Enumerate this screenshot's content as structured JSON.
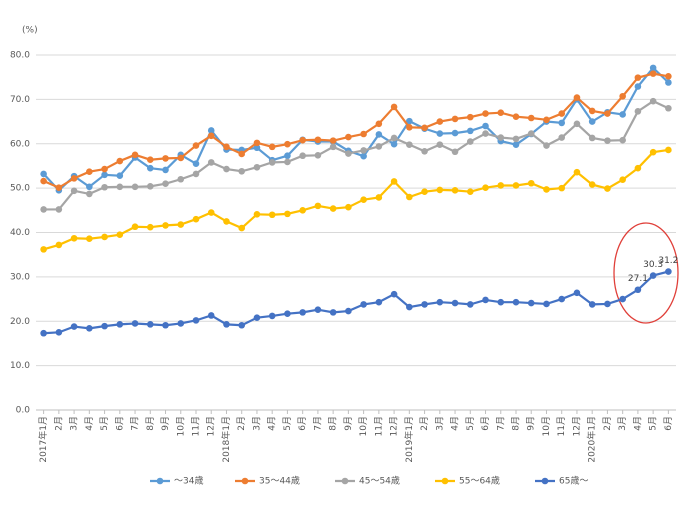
{
  "chart_data": {
    "type": "line",
    "y_label": "(%)",
    "categories": [
      "2017年1月",
      "2月",
      "3月",
      "4月",
      "5月",
      "6月",
      "7月",
      "8月",
      "9月",
      "10月",
      "11月",
      "12月",
      "2018年1月",
      "2月",
      "3月",
      "4月",
      "5月",
      "6月",
      "7月",
      "8月",
      "9月",
      "10月",
      "11月",
      "12月",
      "2019年1月",
      "2月",
      "3月",
      "4月",
      "5月",
      "6月",
      "7月",
      "8月",
      "9月",
      "10月",
      "11月",
      "12月",
      "2020年1月",
      "2月",
      "3月",
      "4月",
      "5月",
      "6月"
    ],
    "ylim": [
      0,
      80
    ],
    "yticks": [
      {
        "value": 0,
        "label": "0.0"
      },
      {
        "value": 10,
        "label": "10.0"
      },
      {
        "value": 20,
        "label": "20.0"
      },
      {
        "value": 30,
        "label": "30.0"
      },
      {
        "value": 40,
        "label": "40.0"
      },
      {
        "value": 50,
        "label": "50.0"
      },
      {
        "value": 60,
        "label": "60.0"
      },
      {
        "value": 70,
        "label": "70.0"
      },
      {
        "value": 80,
        "label": "80.0"
      }
    ],
    "grid": true,
    "legend": "bottom",
    "series": [
      {
        "name": "～34歳",
        "color": "#5b9bd5",
        "values": [
          53.2,
          49.5,
          52.7,
          50.3,
          53.0,
          52.8,
          56.9,
          54.5,
          54.1,
          57.5,
          55.5,
          63.0,
          58.7,
          58.6,
          59.1,
          56.3,
          57.3,
          60.9,
          60.5,
          60.5,
          58.4,
          57.2,
          62.1,
          59.9,
          65.1,
          63.4,
          62.3,
          62.4,
          62.9,
          64.0,
          60.6,
          59.8,
          62.2,
          65.0,
          64.7,
          70.0,
          65.0,
          67.1,
          66.6,
          72.9,
          77.1,
          73.8
        ]
      },
      {
        "name": "35～44歳",
        "color": "#ed7d31",
        "values": [
          51.6,
          50.1,
          52.2,
          53.7,
          54.3,
          56.1,
          57.5,
          56.4,
          56.7,
          56.8,
          59.6,
          61.8,
          59.3,
          57.7,
          60.2,
          59.3,
          59.9,
          60.8,
          60.9,
          60.7,
          61.5,
          62.2,
          64.5,
          68.3,
          63.7,
          63.6,
          65.0,
          65.6,
          66.0,
          66.8,
          67.0,
          66.1,
          65.8,
          65.4,
          66.8,
          70.4,
          67.4,
          66.8,
          70.7,
          74.9,
          75.8,
          75.2
        ]
      },
      {
        "name": "45～54歳",
        "color": "#a5a5a5",
        "values": [
          45.2,
          45.2,
          49.4,
          48.7,
          50.2,
          50.3,
          50.3,
          50.4,
          51.0,
          52.0,
          53.2,
          55.8,
          54.3,
          53.8,
          54.7,
          55.8,
          55.9,
          57.3,
          57.4,
          59.3,
          57.8,
          58.5,
          59.4,
          61.3,
          59.8,
          58.3,
          59.8,
          58.2,
          60.5,
          62.3,
          61.4,
          61.1,
          62.3,
          59.6,
          61.4,
          64.5,
          61.3,
          60.7,
          60.8,
          67.3,
          69.6,
          68.0
        ]
      },
      {
        "name": "55～64歳",
        "color": "#ffc000",
        "values": [
          36.2,
          37.2,
          38.7,
          38.6,
          39.0,
          39.5,
          41.3,
          41.2,
          41.6,
          41.8,
          43.0,
          44.5,
          42.5,
          41.0,
          44.1,
          44.0,
          44.2,
          45.0,
          46.0,
          45.4,
          45.7,
          47.4,
          47.9,
          51.5,
          48.0,
          49.2,
          49.6,
          49.5,
          49.2,
          50.1,
          50.6,
          50.6,
          51.1,
          49.7,
          50.0,
          53.6,
          50.8,
          49.9,
          51.9,
          54.5,
          58.1,
          58.6
        ]
      },
      {
        "name": "65歳～",
        "color": "#4472c4",
        "values": [
          17.3,
          17.5,
          18.8,
          18.4,
          18.9,
          19.3,
          19.5,
          19.3,
          19.1,
          19.5,
          20.2,
          21.3,
          19.3,
          19.1,
          20.8,
          21.2,
          21.7,
          22.0,
          22.6,
          22.0,
          22.3,
          23.8,
          24.3,
          26.1,
          23.2,
          23.8,
          24.3,
          24.1,
          23.8,
          24.8,
          24.3,
          24.3,
          24.1,
          23.9,
          25.0,
          26.4,
          23.8,
          23.9,
          25.0,
          27.1,
          30.3,
          31.2
        ],
        "value_labels": [
          null,
          null,
          null,
          null,
          null,
          null,
          null,
          null,
          null,
          null,
          null,
          null,
          null,
          null,
          null,
          null,
          null,
          null,
          null,
          null,
          null,
          null,
          null,
          null,
          null,
          null,
          null,
          null,
          null,
          null,
          null,
          null,
          null,
          null,
          null,
          null,
          null,
          null,
          null,
          "27.1",
          "30.3",
          "31.2"
        ]
      }
    ]
  }
}
